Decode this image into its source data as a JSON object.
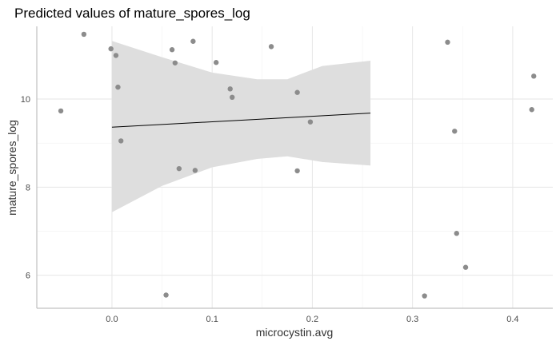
{
  "chart_data": {
    "type": "scatter",
    "title": "Predicted values of mature_spores_log",
    "xlabel": "microcystin.avg",
    "ylabel": "mature_spores_log",
    "xlim": [
      -0.075,
      0.44
    ],
    "ylim": [
      5.25,
      11.65
    ],
    "x_ticks": [
      0.0,
      0.1,
      0.2,
      0.3,
      0.4
    ],
    "x_tick_labels": [
      "0.0",
      "0.1",
      "0.2",
      "0.3",
      "0.4"
    ],
    "y_ticks": [
      6,
      8,
      10
    ],
    "y_tick_labels": [
      "6",
      "8",
      "10"
    ],
    "grid": true,
    "points": [
      {
        "x": -0.051,
        "y": 9.73
      },
      {
        "x": -0.028,
        "y": 11.47
      },
      {
        "x": -0.001,
        "y": 11.14
      },
      {
        "x": 0.004,
        "y": 10.99
      },
      {
        "x": 0.006,
        "y": 10.27
      },
      {
        "x": 0.009,
        "y": 9.05
      },
      {
        "x": 0.054,
        "y": 5.55
      },
      {
        "x": 0.06,
        "y": 11.12
      },
      {
        "x": 0.063,
        "y": 10.82
      },
      {
        "x": 0.067,
        "y": 8.42
      },
      {
        "x": 0.081,
        "y": 11.31
      },
      {
        "x": 0.083,
        "y": 8.38
      },
      {
        "x": 0.104,
        "y": 10.83
      },
      {
        "x": 0.118,
        "y": 10.23
      },
      {
        "x": 0.12,
        "y": 10.04
      },
      {
        "x": 0.159,
        "y": 11.19
      },
      {
        "x": 0.185,
        "y": 10.15
      },
      {
        "x": 0.185,
        "y": 8.37
      },
      {
        "x": 0.198,
        "y": 9.48
      },
      {
        "x": 0.312,
        "y": 5.53
      },
      {
        "x": 0.335,
        "y": 11.29
      },
      {
        "x": 0.342,
        "y": 9.27
      },
      {
        "x": 0.344,
        "y": 6.95
      },
      {
        "x": 0.353,
        "y": 6.18
      },
      {
        "x": 0.419,
        "y": 9.76
      },
      {
        "x": 0.421,
        "y": 10.52
      }
    ],
    "fit_line": [
      {
        "x": 0.0,
        "y": 9.36
      },
      {
        "x": 0.258,
        "y": 9.68
      }
    ],
    "confidence_band": [
      {
        "x": 0.0,
        "upper": 11.32,
        "lower": 7.43
      },
      {
        "x": 0.05,
        "upper": 10.95,
        "lower": 8.03
      },
      {
        "x": 0.1,
        "upper": 10.6,
        "lower": 8.45
      },
      {
        "x": 0.145,
        "upper": 10.45,
        "lower": 8.64
      },
      {
        "x": 0.175,
        "upper": 10.45,
        "lower": 8.7
      },
      {
        "x": 0.21,
        "upper": 10.75,
        "lower": 8.57
      },
      {
        "x": 0.258,
        "upper": 10.87,
        "lower": 8.49
      }
    ],
    "colors": {
      "points": "#8c8c8c",
      "line": "#000000",
      "band": "#dedede",
      "grid_major": "#e6e6e6",
      "grid_minor": "#f2f2f2",
      "axis": "#b3b3b3"
    }
  }
}
